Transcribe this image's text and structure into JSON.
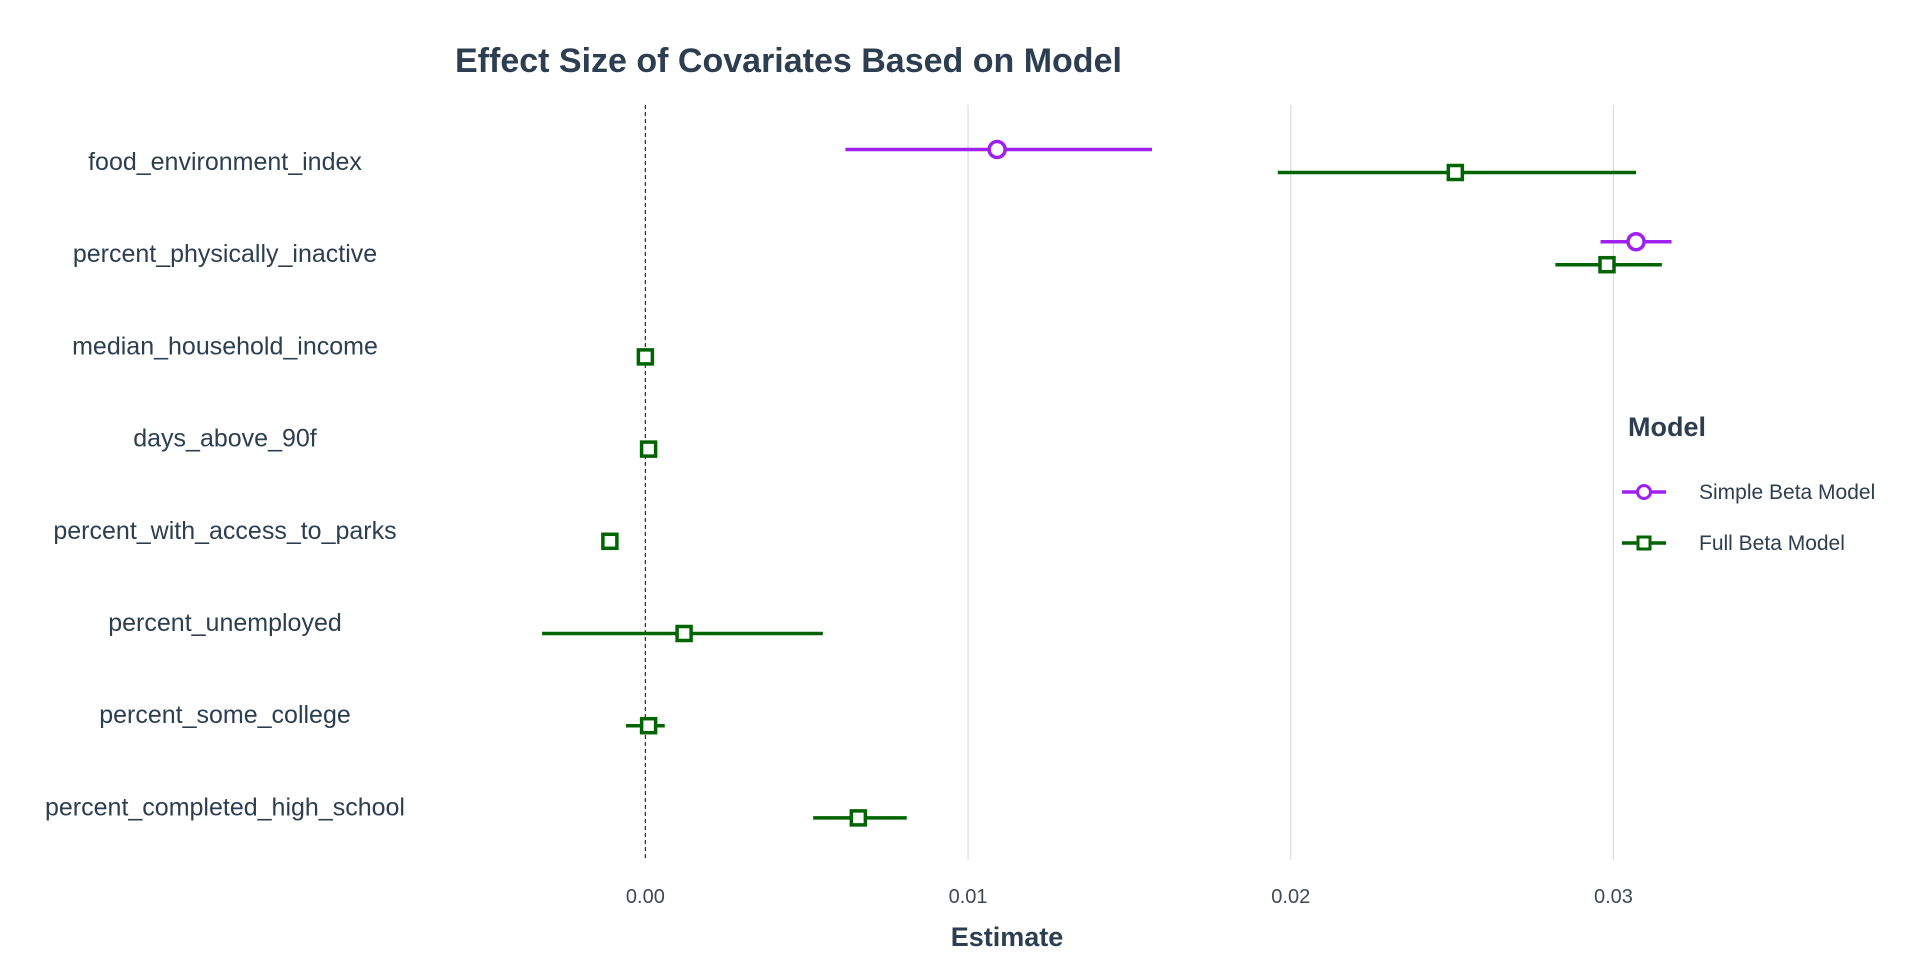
{
  "chart_data": {
    "type": "forest",
    "title": "Effect Size of Covariates Based on Model",
    "xlabel": "Estimate",
    "ylabel": "",
    "xlim": [
      -0.02,
      0.0395
    ],
    "xticks": [
      0.0,
      0.01,
      0.02,
      0.03
    ],
    "xtick_labels": [
      "0.00",
      "0.01",
      "0.02",
      "0.03"
    ],
    "reference_line": 0,
    "vertical_grid": true,
    "legend": {
      "title": "Model",
      "position": "right"
    },
    "categories": [
      "food_environment_index",
      "percent_physically_inactive",
      "median_household_income",
      "days_above_90f",
      "percent_with_access_to_parks",
      "percent_unemployed",
      "percent_some_college",
      "percent_completed_high_school"
    ],
    "series": [
      {
        "name": "Simple Beta Model",
        "color": "#a020f0",
        "marker": "circle",
        "points": [
          {
            "category": "food_environment_index",
            "estimate": 0.0109,
            "lower": 0.0062,
            "upper": 0.0157
          },
          {
            "category": "percent_physically_inactive",
            "estimate": 0.0307,
            "lower": 0.0296,
            "upper": 0.0318
          }
        ]
      },
      {
        "name": "Full Beta Model",
        "color": "#006400",
        "marker": "square",
        "points": [
          {
            "category": "food_environment_index",
            "estimate": 0.0251,
            "lower": 0.0196,
            "upper": 0.0307
          },
          {
            "category": "percent_physically_inactive",
            "estimate": 0.0298,
            "lower": 0.0282,
            "upper": 0.0315
          },
          {
            "category": "median_household_income",
            "estimate": 0.0,
            "lower": 0.0,
            "upper": 0.0
          },
          {
            "category": "days_above_90f",
            "estimate": 0.0001,
            "lower": 0.0001,
            "upper": 0.0001
          },
          {
            "category": "percent_with_access_to_parks",
            "estimate": -0.0011,
            "lower": -0.0011,
            "upper": -0.0011
          },
          {
            "category": "percent_unemployed",
            "estimate": 0.0012,
            "lower": -0.0032,
            "upper": 0.0055
          },
          {
            "category": "percent_some_college",
            "estimate": 0.0001,
            "lower": -0.0006,
            "upper": 0.0006
          },
          {
            "category": "percent_completed_high_school",
            "estimate": 0.0066,
            "lower": 0.0052,
            "upper": 0.0081
          }
        ]
      }
    ]
  }
}
